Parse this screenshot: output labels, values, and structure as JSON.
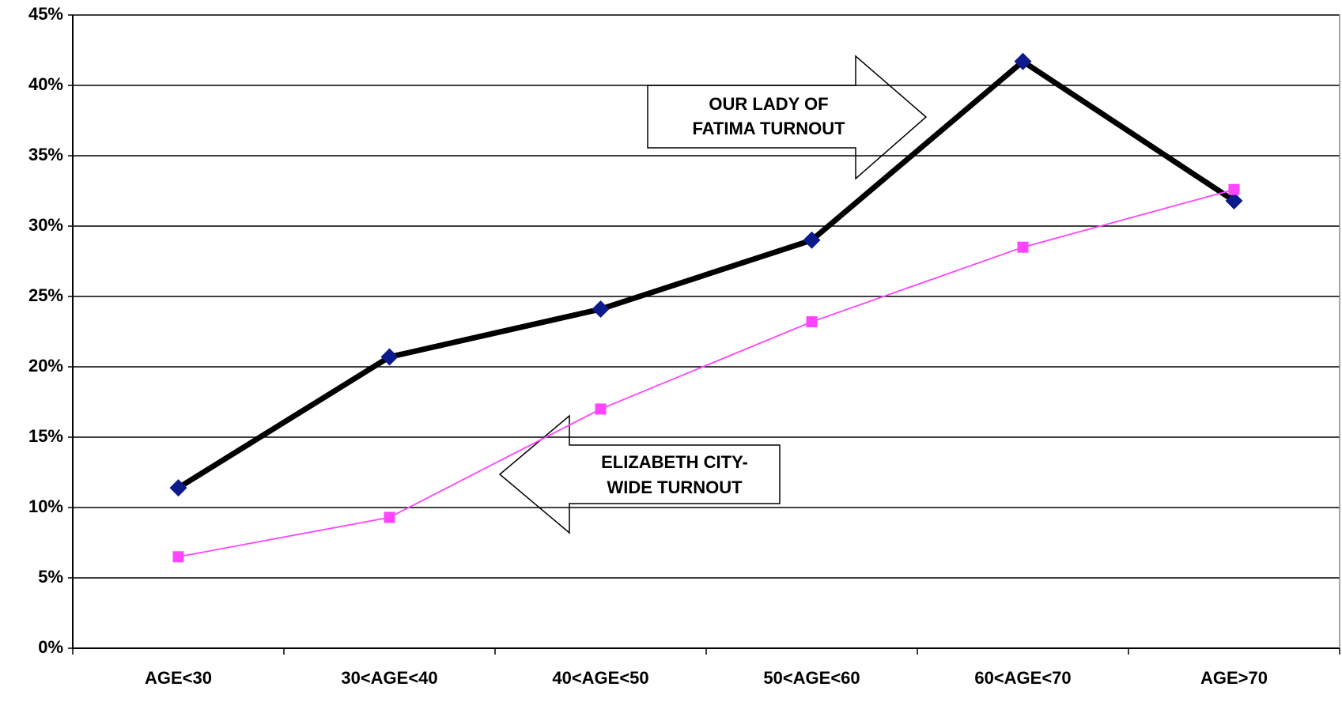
{
  "chart_data": {
    "type": "line",
    "categories": [
      "AGE<30",
      "30<AGE<40",
      "40<AGE<50",
      "50<AGE<60",
      "60<AGE<70",
      "AGE>70"
    ],
    "series": [
      {
        "color": "#000000",
        "marker_color": "#0d1a8c",
        "marker": "diamond",
        "values": [
          11.4,
          20.7,
          24.1,
          29.0,
          41.7,
          31.8
        ]
      },
      {
        "color": "#ff44ff",
        "marker_color": "#ff44ff",
        "marker": "square",
        "values": [
          6.5,
          9.3,
          17.0,
          23.2,
          28.5,
          32.6
        ]
      }
    ],
    "ylim": [
      0,
      45
    ],
    "yticks": [
      {
        "value": 0,
        "label": "0%"
      },
      {
        "value": 5,
        "label": "5%"
      },
      {
        "value": 10,
        "label": "10%"
      },
      {
        "value": 15,
        "label": "15%"
      },
      {
        "value": 20,
        "label": "20%"
      },
      {
        "value": 25,
        "label": "25%"
      },
      {
        "value": 30,
        "label": "30%"
      },
      {
        "value": 35,
        "label": "35%"
      },
      {
        "value": 40,
        "label": "40%"
      },
      {
        "value": 45,
        "label": "45%"
      }
    ],
    "grid": true,
    "annotations": [
      {
        "lines": [
          "OUR LADY OF",
          "FATIMA TURNOUT"
        ]
      },
      {
        "lines": [
          "ELIZABETH CITY-",
          "WIDE TURNOUT"
        ]
      }
    ]
  }
}
